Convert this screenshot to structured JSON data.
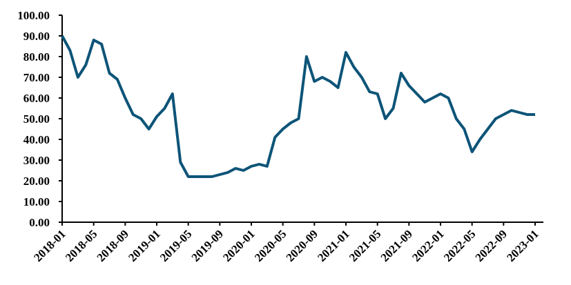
{
  "chart_data": {
    "type": "line",
    "x": [
      "2018-01",
      "2018-02",
      "2018-03",
      "2018-04",
      "2018-05",
      "2018-06",
      "2018-07",
      "2018-08",
      "2018-09",
      "2018-10",
      "2018-11",
      "2018-12",
      "2019-01",
      "2019-02",
      "2019-03",
      "2019-04",
      "2019-05",
      "2019-06",
      "2019-07",
      "2019-08",
      "2019-09",
      "2019-10",
      "2019-11",
      "2019-12",
      "2020-01",
      "2020-02",
      "2020-03",
      "2020-04",
      "2020-05",
      "2020-06",
      "2020-07",
      "2020-08",
      "2020-09",
      "2020-10",
      "2020-11",
      "2020-12",
      "2021-01",
      "2021-02",
      "2021-03",
      "2021-04",
      "2021-05",
      "2021-06",
      "2021-07",
      "2021-08",
      "2021-09",
      "2021-10",
      "2021-11",
      "2021-12",
      "2022-01",
      "2022-02",
      "2022-03",
      "2022-04",
      "2022-05",
      "2022-06",
      "2022-07",
      "2022-08",
      "2022-09",
      "2022-10",
      "2022-11",
      "2022-12",
      "2023-01"
    ],
    "values": [
      90,
      83,
      70,
      76,
      88,
      86,
      72,
      69,
      60,
      52,
      50,
      45,
      51,
      55,
      62,
      29,
      22,
      22,
      22,
      22,
      23,
      24,
      26,
      25,
      27,
      28,
      27,
      41,
      45,
      48,
      50,
      80,
      68,
      70,
      68,
      65,
      82,
      75,
      70,
      63,
      62,
      50,
      55,
      72,
      66,
      62,
      58,
      60,
      62,
      60,
      50,
      45,
      34,
      40,
      45,
      50,
      52,
      54,
      53,
      52,
      52
    ],
    "color": "#0d5478",
    "ylim": [
      0,
      100
    ],
    "yticks": [
      {
        "value": 0,
        "label": "0.00"
      },
      {
        "value": 10,
        "label": "10.00"
      },
      {
        "value": 20,
        "label": "20.00"
      },
      {
        "value": 30,
        "label": "30.00"
      },
      {
        "value": 40,
        "label": "40.00"
      },
      {
        "value": 50,
        "label": "50.00"
      },
      {
        "value": 60,
        "label": "60.00"
      },
      {
        "value": 70,
        "label": "70.00"
      },
      {
        "value": 80,
        "label": "80.00"
      },
      {
        "value": 90,
        "label": "90.00"
      },
      {
        "value": 100,
        "label": "100.00"
      }
    ],
    "xticks": [
      "2018-01",
      "2018-05",
      "2018-09",
      "2019-01",
      "2019-05",
      "2019-09",
      "2020-01",
      "2020-05",
      "2020-09",
      "2021-01",
      "2021-05",
      "2021-09",
      "2022-01",
      "2022-05",
      "2022-09",
      "2023-01"
    ]
  }
}
